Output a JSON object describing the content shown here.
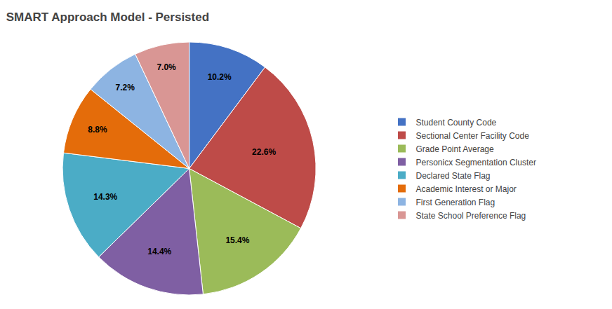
{
  "chart_data": {
    "type": "pie",
    "title": "SMART Approach Model - Persisted",
    "categories": [
      "Student County Code",
      "Sectional Center Facility Code",
      "Grade Point Average",
      "Personicx Segmentation Cluster",
      "Declared State Flag",
      "Academic Interest or Major",
      "First Generation Flag",
      "State School Preference Flag"
    ],
    "values": [
      10.2,
      22.6,
      15.4,
      14.4,
      14.3,
      8.8,
      7.2,
      7.0
    ],
    "value_labels": [
      "10.2%",
      "22.6%",
      "15.4%",
      "14.4%",
      "14.3%",
      "8.8%",
      "7.2%",
      "7.0%"
    ],
    "colors": [
      "#4472C4",
      "#BE4B48",
      "#9BBB59",
      "#7F5FA3",
      "#4BACC6",
      "#E46C0A",
      "#8DB4E2",
      "#D99694"
    ],
    "data_labels": true,
    "legend": "right"
  }
}
